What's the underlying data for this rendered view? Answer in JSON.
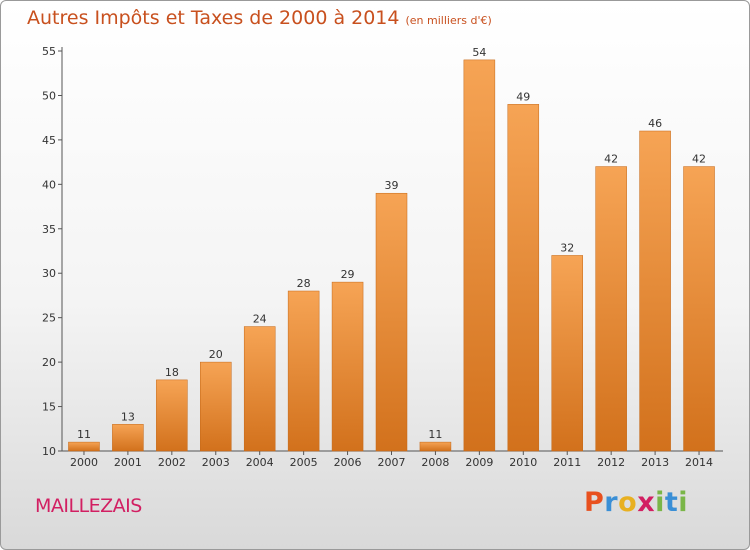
{
  "title": "Autres Impôts et Taxes de 2000 à 2014",
  "subtitle": "(en milliers d'€)",
  "commune": "MAILLEZAIS",
  "logo": {
    "text": "Proxiti",
    "letter_colors": [
      "#e8501e",
      "#3a8fd6",
      "#e8b020",
      "#d21f62",
      "#7ab648",
      "#3a8fd6",
      "#7ab648"
    ]
  },
  "colors": {
    "bar_light": "#f6a455",
    "bar_dark": "#d2711c",
    "bar_edge": "#c46716",
    "title": "#c8501e",
    "commune": "#d21f62"
  },
  "chart_data": {
    "type": "bar",
    "categories": [
      "2000",
      "2001",
      "2002",
      "2003",
      "2004",
      "2005",
      "2006",
      "2007",
      "2008",
      "2009",
      "2010",
      "2011",
      "2012",
      "2013",
      "2014"
    ],
    "values": [
      11,
      13,
      18,
      20,
      24,
      28,
      29,
      39,
      11,
      54,
      49,
      32,
      42,
      46,
      42
    ],
    "ylim": [
      10,
      55
    ],
    "yticks": [
      10,
      15,
      20,
      25,
      30,
      35,
      40,
      45,
      50,
      55
    ],
    "grid": false,
    "data_labels": true
  }
}
